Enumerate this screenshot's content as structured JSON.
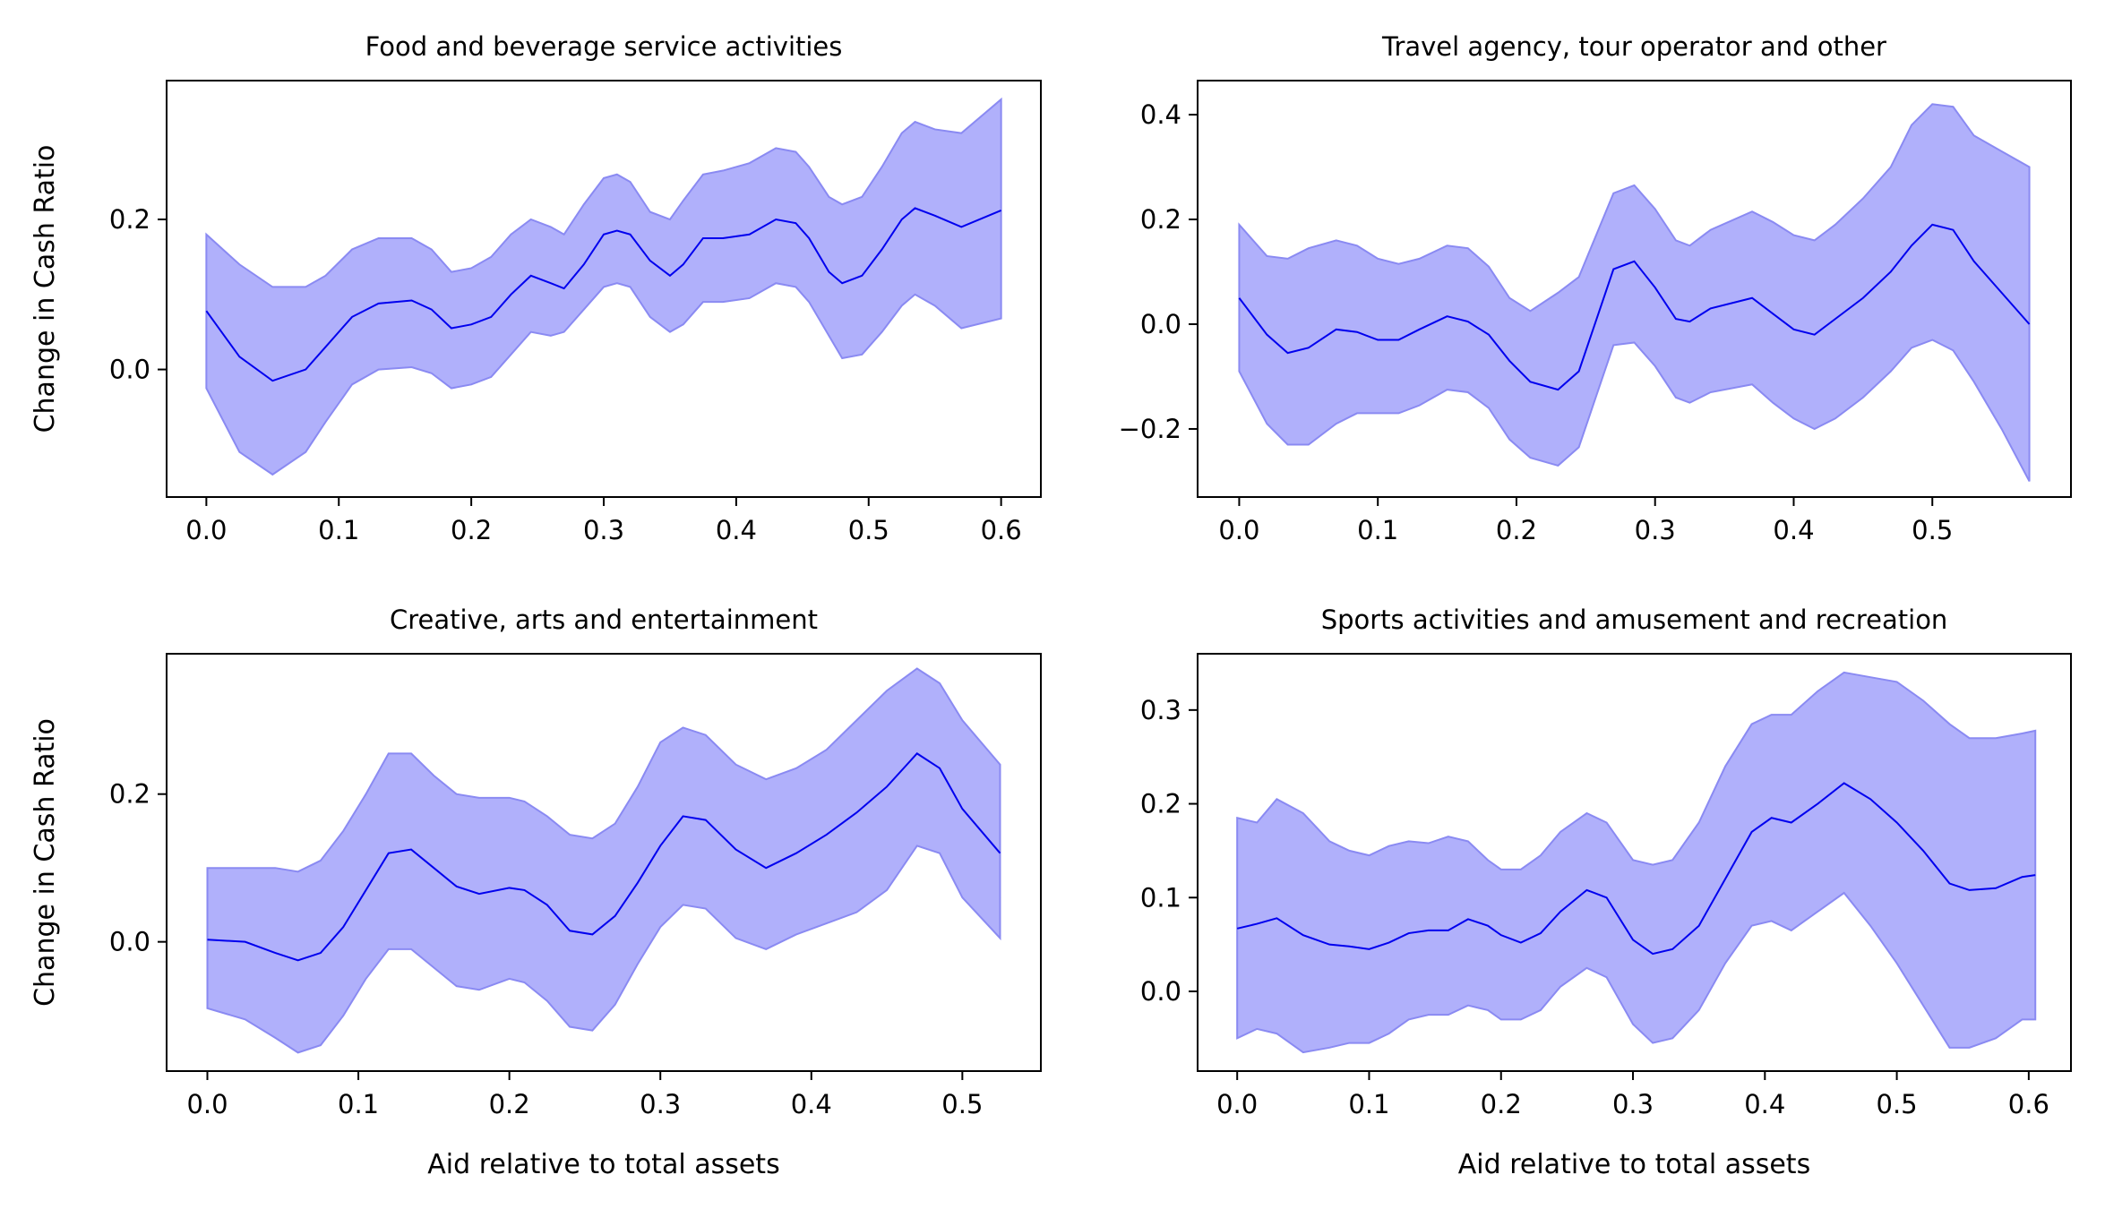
{
  "chart_data": [
    {
      "type": "line",
      "title": "Food and beverage service activities",
      "xlabel": "",
      "ylabel": "Change in Cash Ratio",
      "xlim": [
        -0.03,
        0.63
      ],
      "ylim": [
        -0.17,
        0.385
      ],
      "xticks": [
        0.0,
        0.1,
        0.2,
        0.3,
        0.4,
        0.5,
        0.6
      ],
      "xtick_labels": [
        "0.0",
        "0.1",
        "0.2",
        "0.3",
        "0.4",
        "0.5",
        "0.6"
      ],
      "yticks": [
        0.0,
        0.2
      ],
      "ytick_labels": [
        "0.0",
        "0.2"
      ],
      "grid": false,
      "line_color": "#0000ee",
      "band_color": "#b0b0fb",
      "series": [
        {
          "x": [
            0.0,
            0.025,
            0.05,
            0.075,
            0.09,
            0.11,
            0.13,
            0.155,
            0.17,
            0.185,
            0.2,
            0.215,
            0.23,
            0.245,
            0.26,
            0.27,
            0.285,
            0.3,
            0.31,
            0.32,
            0.335,
            0.35,
            0.36,
            0.375,
            0.39,
            0.41,
            0.43,
            0.445,
            0.455,
            0.47,
            0.48,
            0.495,
            0.51,
            0.525,
            0.535,
            0.55,
            0.57,
            0.6
          ],
          "y": [
            0.078,
            0.017,
            -0.015,
            0.0,
            0.03,
            0.07,
            0.088,
            0.092,
            0.08,
            0.055,
            0.06,
            0.07,
            0.1,
            0.125,
            0.115,
            0.108,
            0.14,
            0.18,
            0.185,
            0.18,
            0.145,
            0.125,
            0.14,
            0.175,
            0.175,
            0.18,
            0.2,
            0.195,
            0.175,
            0.13,
            0.115,
            0.125,
            0.16,
            0.2,
            0.215,
            0.205,
            0.19,
            0.212
          ],
          "lower": [
            -0.025,
            -0.11,
            -0.14,
            -0.11,
            -0.07,
            -0.02,
            0.0,
            0.003,
            -0.005,
            -0.025,
            -0.02,
            -0.01,
            0.02,
            0.05,
            0.045,
            0.05,
            0.08,
            0.11,
            0.115,
            0.11,
            0.07,
            0.05,
            0.06,
            0.09,
            0.09,
            0.095,
            0.115,
            0.11,
            0.09,
            0.045,
            0.015,
            0.02,
            0.05,
            0.085,
            0.1,
            0.085,
            0.055,
            0.068
          ],
          "upper": [
            0.18,
            0.14,
            0.11,
            0.11,
            0.125,
            0.16,
            0.175,
            0.175,
            0.16,
            0.13,
            0.135,
            0.15,
            0.18,
            0.2,
            0.19,
            0.18,
            0.22,
            0.255,
            0.26,
            0.25,
            0.21,
            0.2,
            0.225,
            0.26,
            0.265,
            0.275,
            0.295,
            0.29,
            0.27,
            0.23,
            0.22,
            0.23,
            0.27,
            0.315,
            0.33,
            0.32,
            0.315,
            0.36
          ]
        }
      ]
    },
    {
      "type": "line",
      "title": "Travel agency, tour operator and other",
      "xlabel": "",
      "ylabel": "",
      "xlim": [
        -0.03,
        0.6
      ],
      "ylim": [
        -0.33,
        0.465
      ],
      "xticks": [
        0.0,
        0.1,
        0.2,
        0.3,
        0.4,
        0.5
      ],
      "xtick_labels": [
        "0.0",
        "0.1",
        "0.2",
        "0.3",
        "0.4",
        "0.5"
      ],
      "yticks": [
        -0.2,
        0.0,
        0.2,
        0.4
      ],
      "ytick_labels": [
        "−0.2",
        "0.0",
        "0.2",
        "0.4"
      ],
      "grid": false,
      "line_color": "#0000ee",
      "band_color": "#b0b0fb",
      "series": [
        {
          "x": [
            0.0,
            0.02,
            0.035,
            0.05,
            0.07,
            0.085,
            0.1,
            0.115,
            0.13,
            0.15,
            0.165,
            0.18,
            0.195,
            0.21,
            0.23,
            0.245,
            0.27,
            0.285,
            0.3,
            0.315,
            0.325,
            0.34,
            0.37,
            0.385,
            0.4,
            0.415,
            0.43,
            0.45,
            0.47,
            0.485,
            0.5,
            0.515,
            0.53,
            0.55,
            0.57
          ],
          "y": [
            0.05,
            -0.02,
            -0.055,
            -0.045,
            -0.01,
            -0.015,
            -0.03,
            -0.03,
            -0.01,
            0.015,
            0.005,
            -0.02,
            -0.07,
            -0.11,
            -0.125,
            -0.09,
            0.105,
            0.12,
            0.07,
            0.01,
            0.005,
            0.03,
            0.05,
            0.02,
            -0.01,
            -0.02,
            0.01,
            0.05,
            0.1,
            0.15,
            0.19,
            0.18,
            0.12,
            0.06,
            0.0
          ],
          "lower": [
            -0.09,
            -0.19,
            -0.23,
            -0.23,
            -0.19,
            -0.17,
            -0.17,
            -0.17,
            -0.155,
            -0.125,
            -0.13,
            -0.16,
            -0.22,
            -0.255,
            -0.27,
            -0.235,
            -0.04,
            -0.035,
            -0.08,
            -0.14,
            -0.15,
            -0.13,
            -0.115,
            -0.15,
            -0.18,
            -0.2,
            -0.18,
            -0.14,
            -0.09,
            -0.045,
            -0.03,
            -0.05,
            -0.11,
            -0.2,
            -0.3
          ],
          "upper": [
            0.19,
            0.13,
            0.125,
            0.145,
            0.16,
            0.15,
            0.125,
            0.115,
            0.125,
            0.15,
            0.145,
            0.11,
            0.05,
            0.025,
            0.06,
            0.09,
            0.25,
            0.265,
            0.22,
            0.16,
            0.15,
            0.18,
            0.215,
            0.195,
            0.17,
            0.16,
            0.19,
            0.24,
            0.3,
            0.38,
            0.42,
            0.415,
            0.36,
            0.33,
            0.3
          ]
        }
      ]
    },
    {
      "type": "line",
      "title": "Creative, arts and entertainment",
      "xlabel": "Aid relative to total assets",
      "ylabel": "Change in Cash Ratio",
      "xlim": [
        -0.027,
        0.552
      ],
      "ylim": [
        -0.175,
        0.39
      ],
      "xticks": [
        0.0,
        0.1,
        0.2,
        0.3,
        0.4,
        0.5
      ],
      "xtick_labels": [
        "0.0",
        "0.1",
        "0.2",
        "0.3",
        "0.4",
        "0.5"
      ],
      "yticks": [
        0.0,
        0.2
      ],
      "ytick_labels": [
        "0.0",
        "0.2"
      ],
      "grid": false,
      "line_color": "#0000ee",
      "band_color": "#b0b0fb",
      "series": [
        {
          "x": [
            0.0,
            0.025,
            0.045,
            0.06,
            0.075,
            0.09,
            0.105,
            0.12,
            0.135,
            0.15,
            0.165,
            0.18,
            0.2,
            0.21,
            0.225,
            0.24,
            0.255,
            0.27,
            0.285,
            0.3,
            0.315,
            0.33,
            0.35,
            0.37,
            0.39,
            0.41,
            0.43,
            0.45,
            0.47,
            0.485,
            0.5,
            0.525
          ],
          "y": [
            0.003,
            0.0,
            -0.015,
            -0.025,
            -0.015,
            0.02,
            0.07,
            0.12,
            0.125,
            0.1,
            0.075,
            0.065,
            0.073,
            0.07,
            0.05,
            0.015,
            0.01,
            0.035,
            0.08,
            0.13,
            0.17,
            0.165,
            0.125,
            0.1,
            0.12,
            0.145,
            0.175,
            0.21,
            0.255,
            0.235,
            0.18,
            0.12
          ],
          "lower": [
            -0.09,
            -0.105,
            -0.13,
            -0.15,
            -0.14,
            -0.1,
            -0.05,
            -0.01,
            -0.01,
            -0.035,
            -0.06,
            -0.065,
            -0.05,
            -0.055,
            -0.08,
            -0.115,
            -0.12,
            -0.085,
            -0.03,
            0.02,
            0.05,
            0.045,
            0.005,
            -0.01,
            0.01,
            0.025,
            0.04,
            0.07,
            0.13,
            0.12,
            0.06,
            0.005
          ],
          "upper": [
            0.1,
            0.1,
            0.1,
            0.095,
            0.11,
            0.15,
            0.2,
            0.255,
            0.255,
            0.225,
            0.2,
            0.195,
            0.195,
            0.19,
            0.17,
            0.145,
            0.14,
            0.16,
            0.21,
            0.27,
            0.29,
            0.28,
            0.24,
            0.22,
            0.235,
            0.26,
            0.3,
            0.34,
            0.37,
            0.35,
            0.3,
            0.24
          ]
        }
      ]
    },
    {
      "type": "line",
      "title": "Sports activities and amusement and recreation",
      "xlabel": "Aid relative to total assets",
      "ylabel": "",
      "xlim": [
        -0.03,
        0.632
      ],
      "ylim": [
        -0.085,
        0.36
      ],
      "xticks": [
        0.0,
        0.1,
        0.2,
        0.3,
        0.4,
        0.5,
        0.6
      ],
      "xtick_labels": [
        "0.0",
        "0.1",
        "0.2",
        "0.3",
        "0.4",
        "0.5",
        "0.6"
      ],
      "yticks": [
        0.0,
        0.1,
        0.2,
        0.3
      ],
      "ytick_labels": [
        "0.0",
        "0.1",
        "0.2",
        "0.3"
      ],
      "grid": false,
      "line_color": "#0000ee",
      "band_color": "#b0b0fb",
      "series": [
        {
          "x": [
            0.0,
            0.015,
            0.03,
            0.05,
            0.07,
            0.085,
            0.1,
            0.115,
            0.13,
            0.145,
            0.16,
            0.175,
            0.19,
            0.2,
            0.215,
            0.23,
            0.245,
            0.265,
            0.28,
            0.3,
            0.315,
            0.33,
            0.35,
            0.37,
            0.39,
            0.405,
            0.42,
            0.44,
            0.46,
            0.48,
            0.5,
            0.52,
            0.54,
            0.555,
            0.575,
            0.595,
            0.605
          ],
          "y": [
            0.067,
            0.072,
            0.078,
            0.06,
            0.05,
            0.048,
            0.045,
            0.052,
            0.062,
            0.065,
            0.065,
            0.077,
            0.07,
            0.06,
            0.052,
            0.062,
            0.085,
            0.108,
            0.1,
            0.055,
            0.04,
            0.045,
            0.07,
            0.12,
            0.17,
            0.185,
            0.18,
            0.2,
            0.222,
            0.205,
            0.18,
            0.15,
            0.115,
            0.108,
            0.11,
            0.122,
            0.124
          ],
          "lower": [
            -0.05,
            -0.04,
            -0.045,
            -0.065,
            -0.06,
            -0.055,
            -0.055,
            -0.045,
            -0.03,
            -0.025,
            -0.025,
            -0.015,
            -0.02,
            -0.03,
            -0.03,
            -0.02,
            0.005,
            0.025,
            0.015,
            -0.035,
            -0.055,
            -0.05,
            -0.02,
            0.03,
            0.07,
            0.075,
            0.065,
            0.085,
            0.105,
            0.07,
            0.03,
            -0.015,
            -0.06,
            -0.06,
            -0.05,
            -0.03,
            -0.03
          ],
          "upper": [
            0.185,
            0.18,
            0.205,
            0.19,
            0.16,
            0.15,
            0.145,
            0.155,
            0.16,
            0.158,
            0.165,
            0.16,
            0.14,
            0.13,
            0.13,
            0.145,
            0.17,
            0.19,
            0.18,
            0.14,
            0.135,
            0.14,
            0.18,
            0.24,
            0.285,
            0.295,
            0.295,
            0.32,
            0.34,
            0.335,
            0.33,
            0.31,
            0.285,
            0.27,
            0.27,
            0.275,
            0.278
          ]
        }
      ]
    }
  ]
}
